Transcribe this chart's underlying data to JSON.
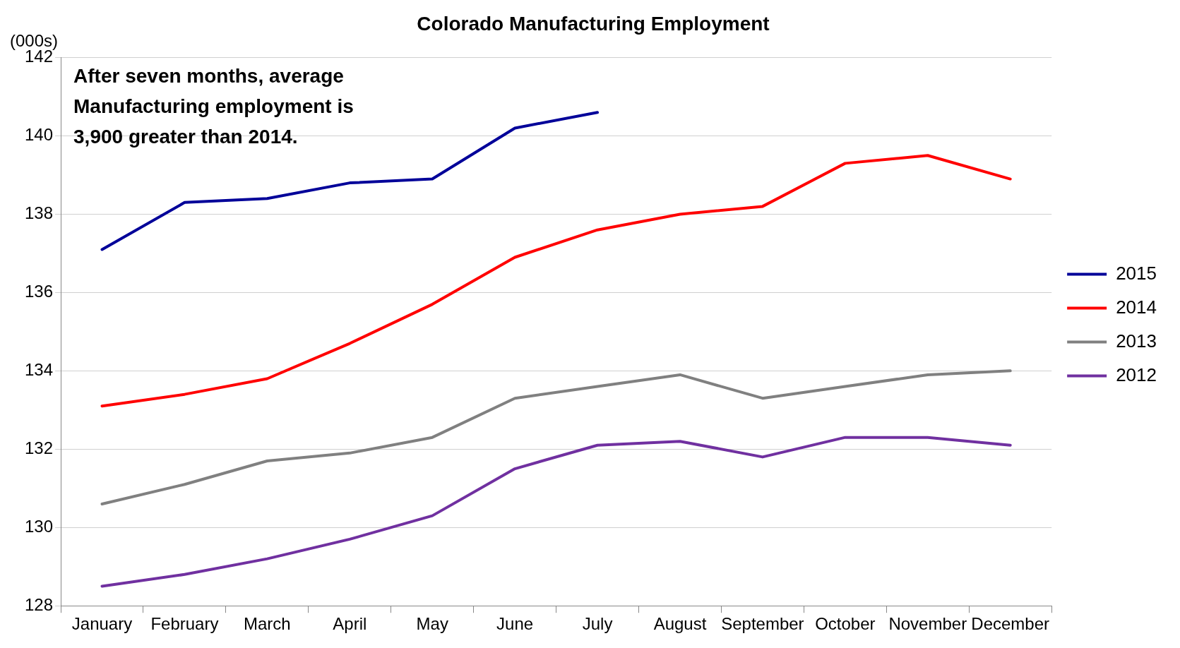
{
  "chart_data": {
    "type": "line",
    "title": "Colorado Manufacturing Employment",
    "ylabel": "(000s)",
    "annotations": [
      "After seven months, average Manufacturing employment is 3,900 greater than 2014."
    ],
    "categories": [
      "January",
      "February",
      "March",
      "April",
      "May",
      "June",
      "July",
      "August",
      "September",
      "October",
      "November",
      "December"
    ],
    "series": [
      {
        "name": "2015",
        "color": "#000099",
        "values": [
          137.1,
          138.3,
          138.4,
          138.8,
          138.9,
          140.2,
          140.6,
          null,
          null,
          null,
          null,
          null
        ]
      },
      {
        "name": "2014",
        "color": "#ff0000",
        "values": [
          133.1,
          133.4,
          133.8,
          134.7,
          135.7,
          136.9,
          137.6,
          138.0,
          138.2,
          139.3,
          139.5,
          138.9
        ]
      },
      {
        "name": "2013",
        "color": "#808080",
        "values": [
          130.6,
          131.1,
          131.7,
          131.9,
          132.3,
          133.3,
          133.6,
          133.9,
          133.3,
          133.6,
          133.9,
          134.0
        ]
      },
      {
        "name": "2012",
        "color": "#7030a0",
        "values": [
          128.5,
          128.8,
          129.2,
          129.7,
          130.3,
          131.5,
          132.1,
          132.2,
          131.8,
          132.3,
          132.3,
          132.1
        ]
      }
    ],
    "ylim": [
      128,
      142
    ],
    "yticks": [
      128,
      130,
      132,
      134,
      136,
      138,
      140,
      142
    ],
    "grid": "y",
    "legend": "right",
    "marker": "none",
    "line_style": "solid"
  }
}
